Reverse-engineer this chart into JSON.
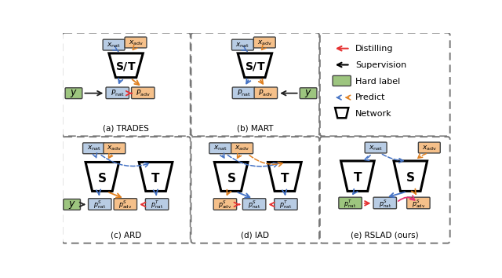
{
  "fig_width": 6.4,
  "fig_height": 3.54,
  "bg_color": "#ffffff",
  "color_xnat": "#b8cce4",
  "color_xadv": "#f5c08a",
  "color_green": "#9dc57f",
  "color_pnat": "#b8cce4",
  "color_padv": "#f5c08a",
  "color_red_arrow": "#e63232",
  "color_pink_arrow": "#e63272",
  "color_black_arrow": "#222222",
  "color_blue_dashed": "#4472c4",
  "color_orange_dashed": "#e08020",
  "color_border": "#777777",
  "titles": [
    "(a) TRADES",
    "(b) MART",
    "(c) ARD",
    "(d) IAD",
    "(e) RSLAD (ours)"
  ],
  "legend_items": [
    "Distilling",
    "Supervision",
    "Hard label",
    "Predict",
    "Network"
  ],
  "panels": {
    "a": [
      3,
      3,
      203,
      163
    ],
    "b": [
      215,
      3,
      203,
      163
    ],
    "legend": [
      427,
      3,
      206,
      163
    ],
    "c": [
      3,
      175,
      203,
      168
    ],
    "d": [
      215,
      175,
      203,
      168
    ],
    "e": [
      427,
      175,
      206,
      168
    ]
  }
}
